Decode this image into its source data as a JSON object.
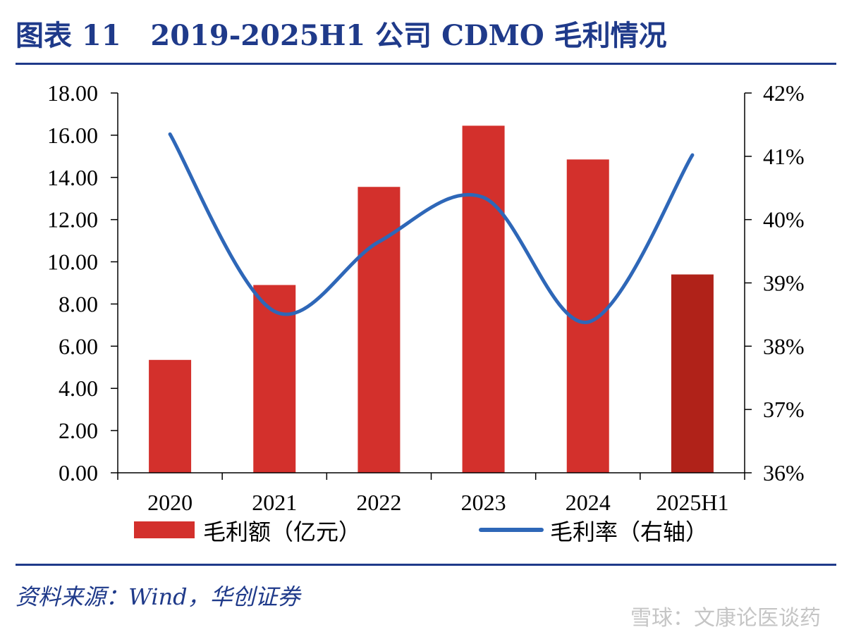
{
  "header": {
    "title": "图表 11   2019-2025H1 公司 CDMO 毛利情况"
  },
  "footer": {
    "source": "资料来源：Wind，华创证券",
    "watermark": "雪球：文康论医谈药"
  },
  "chart_data": {
    "type": "bar",
    "categories": [
      "2020",
      "2021",
      "2022",
      "2023",
      "2024",
      "2025H1"
    ],
    "series": [
      {
        "name": "毛利额（亿元）",
        "type": "bar",
        "axis": "left",
        "values": [
          5.35,
          8.9,
          13.55,
          16.45,
          14.85,
          9.4
        ],
        "color": "#d3302c",
        "highlight_color": "#b02219"
      },
      {
        "name": "毛利率（右轴）",
        "type": "line",
        "axis": "right",
        "values": [
          41.35,
          38.55,
          39.65,
          40.35,
          38.38,
          41.02
        ],
        "color": "#2e67b8"
      }
    ],
    "y_left": {
      "lim": [
        0,
        18
      ],
      "ticks": [
        "0.00",
        "2.00",
        "4.00",
        "6.00",
        "8.00",
        "10.00",
        "12.00",
        "14.00",
        "16.00",
        "18.00"
      ]
    },
    "y_right": {
      "lim": [
        36,
        42
      ],
      "ticks": [
        "36%",
        "37%",
        "38%",
        "39%",
        "40%",
        "41%",
        "42%"
      ]
    },
    "legend_position": "bottom",
    "grid": false
  }
}
